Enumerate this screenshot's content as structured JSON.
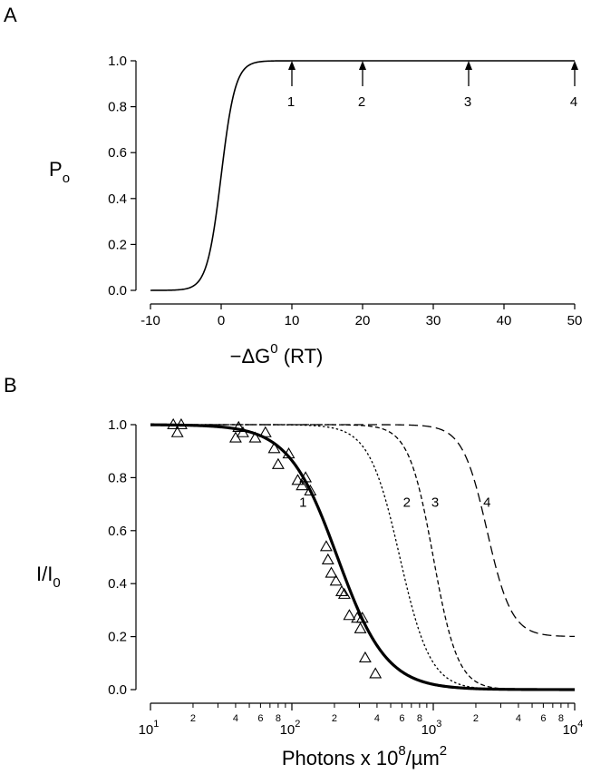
{
  "chart_data": [
    {
      "panel": "A",
      "type": "line",
      "xlabel": "−ΔG",
      "xlabel_sup": "0",
      "xlabel_tail": " (RT)",
      "ylabel": "P",
      "ylabel_sub": "o",
      "xlim": [
        -12,
        50
      ],
      "ylim": [
        0,
        1.0
      ],
      "xticks": [
        -10,
        0,
        10,
        20,
        30,
        40,
        50
      ],
      "xtick_labels": [
        "-10",
        "0",
        "10",
        "20",
        "30",
        "40",
        "50"
      ],
      "yticks": [
        0.0,
        0.2,
        0.4,
        0.6,
        0.8,
        1.0
      ],
      "ytick_labels": [
        "0.0",
        "0.2",
        "0.4",
        "0.6",
        "0.8",
        "1.0"
      ],
      "curve": "P_o = 1/(1+exp(-x))",
      "curve_x_range": [
        -10,
        50
      ],
      "arrows": [
        {
          "x": 10,
          "label": "1"
        },
        {
          "x": 20,
          "label": "2"
        },
        {
          "x": 35,
          "label": "3"
        },
        {
          "x": 50,
          "label": "4"
        }
      ]
    },
    {
      "panel": "B",
      "type": "scatter",
      "xscale": "log",
      "xlabel": "Photons x 10",
      "xlabel_sup1": "8",
      "xlabel_mid": "/µm",
      "xlabel_sup2": "2",
      "ylabel": "I/I",
      "ylabel_sub": "0",
      "xlim": [
        10,
        10000
      ],
      "ylim": [
        0,
        1.0
      ],
      "major_ticks": [
        {
          "value": 10,
          "base": "10",
          "exp": "1"
        },
        {
          "value": 100,
          "base": "10",
          "exp": "2"
        },
        {
          "value": 1000,
          "base": "10",
          "exp": "3"
        },
        {
          "value": 10000,
          "base": "10",
          "exp": "4"
        }
      ],
      "minor_label_multipliers": [
        2,
        4,
        6,
        8
      ],
      "yticks": [
        0.0,
        0.2,
        0.4,
        0.6,
        0.8,
        1.0
      ],
      "ytick_labels": [
        "0.0",
        "0.2",
        "0.4",
        "0.6",
        "0.8",
        "1.0"
      ],
      "points": [
        {
          "x": 14.5,
          "y": 1.0
        },
        {
          "x": 15.5,
          "y": 0.97
        },
        {
          "x": 16.5,
          "y": 1.0
        },
        {
          "x": 40,
          "y": 0.95
        },
        {
          "x": 42,
          "y": 0.99
        },
        {
          "x": 45,
          "y": 0.97
        },
        {
          "x": 55,
          "y": 0.95
        },
        {
          "x": 65,
          "y": 0.97
        },
        {
          "x": 75,
          "y": 0.91
        },
        {
          "x": 80,
          "y": 0.85
        },
        {
          "x": 95,
          "y": 0.89
        },
        {
          "x": 110,
          "y": 0.79
        },
        {
          "x": 118,
          "y": 0.77
        },
        {
          "x": 125,
          "y": 0.8
        },
        {
          "x": 135,
          "y": 0.75
        },
        {
          "x": 175,
          "y": 0.54
        },
        {
          "x": 180,
          "y": 0.49
        },
        {
          "x": 190,
          "y": 0.44
        },
        {
          "x": 205,
          "y": 0.41
        },
        {
          "x": 225,
          "y": 0.37
        },
        {
          "x": 235,
          "y": 0.36
        },
        {
          "x": 255,
          "y": 0.28
        },
        {
          "x": 290,
          "y": 0.27
        },
        {
          "x": 305,
          "y": 0.23
        },
        {
          "x": 315,
          "y": 0.27
        },
        {
          "x": 330,
          "y": 0.12
        },
        {
          "x": 390,
          "y": 0.06
        }
      ],
      "series": [
        {
          "name": "1",
          "style": "solid-thick",
          "half": 210,
          "hill": 2.5,
          "min": 0.0,
          "label_x": 120,
          "label_y": 0.69
        },
        {
          "name": "2",
          "style": "dotted",
          "half": 580,
          "hill": 4.0,
          "min": 0.0,
          "label_x": 650,
          "label_y": 0.69
        },
        {
          "name": "3",
          "style": "dashed-short",
          "half": 1000,
          "hill": 5.0,
          "min": 0.0,
          "label_x": 1030,
          "label_y": 0.69
        },
        {
          "name": "4",
          "style": "dashed-long",
          "half": 2400,
          "hill": 5.0,
          "min": 0.2,
          "label_x": 2400,
          "label_y": 0.69
        }
      ]
    }
  ]
}
